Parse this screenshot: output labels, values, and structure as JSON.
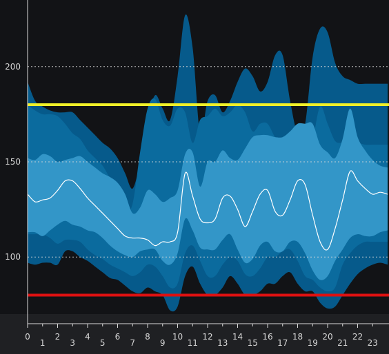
{
  "chart_data": {
    "type": "area",
    "title": "",
    "xlabel": "",
    "ylabel": "",
    "x": [
      0,
      0.5,
      1,
      1.5,
      2,
      2.5,
      3,
      3.5,
      4,
      4.5,
      5,
      5.5,
      6,
      6.5,
      7,
      7.5,
      8,
      8.5,
      9,
      9.5,
      10,
      10.5,
      11,
      11.5,
      12,
      12.5,
      13,
      13.5,
      14,
      14.5,
      15,
      15.5,
      16,
      16.5,
      17,
      17.5,
      18,
      18.5,
      19,
      19.5,
      20,
      20.5,
      21,
      21.5,
      22,
      22.5,
      23,
      23.5,
      24
    ],
    "xlim": [
      0,
      24
    ],
    "ylim": [
      65,
      235
    ],
    "x_ticks": [
      "0",
      "1",
      "2",
      "3",
      "4",
      "5",
      "6",
      "7",
      "8",
      "9",
      "10",
      "11",
      "12",
      "13",
      "14",
      "15",
      "16",
      "17",
      "18",
      "19",
      "20",
      "21",
      "22",
      "23"
    ],
    "y_ticks": [
      100,
      150,
      200
    ],
    "grid": "horizontal dotted",
    "bands": [
      {
        "lower": [
          97,
          96,
          97,
          97,
          96,
          103,
          103,
          100,
          98,
          95,
          92,
          89,
          88,
          85,
          82,
          81,
          84,
          82,
          80,
          72,
          74,
          90,
          95,
          86,
          80,
          80,
          84,
          90,
          86,
          80,
          80,
          82,
          86,
          86,
          90,
          92,
          86,
          82,
          82,
          76,
          73,
          74,
          80,
          86,
          91,
          94,
          96,
          97,
          96
        ],
        "upper": [
          192,
          182,
          179,
          177,
          176,
          176,
          176,
          172,
          168,
          164,
          160,
          157,
          152,
          144,
          136,
          150,
          172,
          185,
          178,
          172,
          195,
          227,
          210,
          165,
          182,
          185,
          176,
          182,
          192,
          199,
          195,
          187,
          192,
          206,
          206,
          182,
          165,
          170,
          205,
          220,
          218,
          202,
          195,
          193,
          191,
          191,
          191,
          191,
          191
        ],
        "color": "#065a8b"
      },
      {
        "lower": [
          112,
          112,
          112,
          110,
          107,
          109,
          109,
          108,
          104,
          101,
          99,
          96,
          94,
          92,
          90,
          92,
          96,
          95,
          90,
          84,
          86,
          102,
          106,
          98,
          90,
          90,
          96,
          100,
          98,
          91,
          90,
          94,
          100,
          100,
          103,
          104,
          98,
          90,
          88,
          84,
          82,
          84,
          96,
          102,
          106,
          108,
          108,
          108,
          108
        ],
        "upper": [
          180,
          177,
          175,
          175,
          174,
          170,
          165,
          162,
          156,
          152,
          148,
          141,
          132,
          124,
          128,
          155,
          178,
          183,
          172,
          169,
          178,
          176,
          160,
          172,
          174,
          178,
          174,
          176,
          180,
          176,
          166,
          170,
          170,
          163,
          160,
          155,
          145,
          138,
          160,
          179,
          170,
          161,
          160,
          160,
          160,
          159,
          159,
          159,
          159
        ],
        "color": "#0b6b9e"
      },
      {
        "lower": [
          113,
          113,
          111,
          114,
          117,
          119,
          117,
          116,
          114,
          113,
          110,
          106,
          103,
          101,
          100,
          103,
          104,
          104,
          98,
          96,
          102,
          120,
          114,
          105,
          104,
          104,
          109,
          112,
          104,
          97,
          99,
          106,
          108,
          103,
          103,
          108,
          108,
          102,
          93,
          88,
          90,
          98,
          104,
          110,
          112,
          111,
          111,
          113,
          114
        ],
        "upper": [
          152,
          151,
          154,
          153,
          150,
          151,
          152,
          153,
          150,
          147,
          144,
          142,
          139,
          133,
          123,
          126,
          135,
          133,
          129,
          131,
          135,
          154,
          155,
          137,
          150,
          150,
          156,
          152,
          151,
          157,
          163,
          164,
          164,
          163,
          163,
          166,
          170,
          170,
          170,
          159,
          155,
          152,
          162,
          178,
          163,
          156,
          151,
          148,
          147
        ],
        "color": "#3396c8"
      }
    ],
    "series": [
      {
        "values": [
          133,
          129,
          130,
          131,
          135,
          140,
          140,
          136,
          131,
          127,
          123,
          119,
          115,
          111,
          110,
          110,
          109,
          106,
          108,
          108,
          113,
          144,
          132,
          120,
          118,
          120,
          131,
          132,
          125,
          116,
          124,
          133,
          135,
          124,
          122,
          130,
          140,
          138,
          122,
          108,
          104,
          115,
          130,
          145,
          140,
          136,
          133,
          134,
          133
        ],
        "color": "#ffffff"
      }
    ],
    "reference_lines": [
      {
        "value": 180,
        "color": "#f0f028"
      },
      {
        "value": 80,
        "color": "#dd1111"
      }
    ],
    "colors": {
      "background": "#121316",
      "axis_band": "#1f2023",
      "axis_line": "#d9d9d9",
      "grid": "#d9d9d9",
      "tick_text": "#d7d7d7"
    }
  }
}
